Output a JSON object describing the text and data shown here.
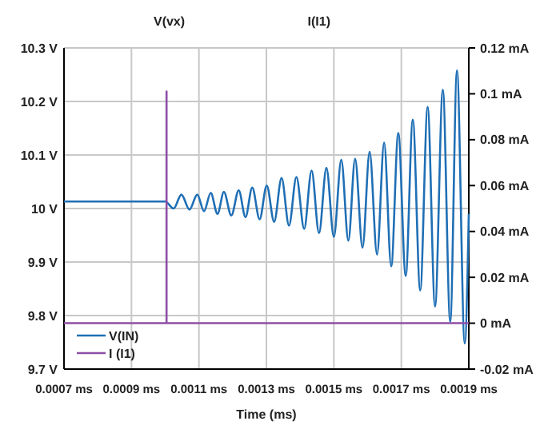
{
  "chart_data": {
    "type": "line",
    "xlabel": "Time (ms)",
    "annotations": [
      "V(vx)",
      "I(I1)"
    ],
    "xlim": [
      0.0007,
      0.0019
    ],
    "xticks": [
      {
        "value": 0.0007,
        "label": "0.0007 ms"
      },
      {
        "value": 0.0009,
        "label": "0.0009 ms"
      },
      {
        "value": 0.0011,
        "label": "0.0011 ms"
      },
      {
        "value": 0.0013,
        "label": "0.0013 ms"
      },
      {
        "value": 0.0015,
        "label": "0.0015 ms"
      },
      {
        "value": 0.0017,
        "label": "0.0017 ms"
      },
      {
        "value": 0.0019,
        "label": "0.0019 ms"
      }
    ],
    "ylim": [
      9.7,
      10.3
    ],
    "yticks": [
      {
        "value": 9.7,
        "label": "9.7 V"
      },
      {
        "value": 9.8,
        "label": "9.8 V"
      },
      {
        "value": 9.9,
        "label": "9.9 V"
      },
      {
        "value": 10,
        "label": "10 V"
      },
      {
        "value": 10.1,
        "label": "10.1 V"
      },
      {
        "value": 10.2,
        "label": "10.2 V"
      },
      {
        "value": 10.3,
        "label": "10.3 V"
      }
    ],
    "y2lim": [
      -0.02,
      0.12
    ],
    "y2ticks": [
      {
        "value": -0.02,
        "label": "-0.02 mA"
      },
      {
        "value": 0,
        "label": "0 mA"
      },
      {
        "value": 0.02,
        "label": "0.02 mA"
      },
      {
        "value": 0.04,
        "label": "0.04 mA"
      },
      {
        "value": 0.06,
        "label": "0.06 mA"
      },
      {
        "value": 0.08,
        "label": "0.08 mA"
      },
      {
        "value": 0.1,
        "label": "0.1 mA"
      },
      {
        "value": 0.12,
        "label": "0.12 mA"
      }
    ],
    "grid": true,
    "legend": "bottom left",
    "line_style": "solid",
    "series": [
      {
        "name": "V(IN)",
        "color": "#1f6fb5",
        "x": [
          0.0007,
          0.001,
          0.001025,
          0.001048,
          0.001072,
          0.001095,
          0.001115,
          0.001135,
          0.001155,
          0.001174,
          0.001196,
          0.001218,
          0.001238,
          0.001258,
          0.00128,
          0.001301,
          0.001323,
          0.001345,
          0.001367,
          0.001389,
          0.001412,
          0.001434,
          0.001456,
          0.001478,
          0.0015,
          0.001522,
          0.001543,
          0.001563,
          0.001585,
          0.001606,
          0.001628,
          0.001649,
          0.00167,
          0.001691,
          0.001713,
          0.001734,
          0.001756,
          0.001778,
          0.0018,
          0.001823,
          0.001845,
          0.001865,
          0.001888,
          0.0019
        ],
        "values": [
          10.013,
          10.013,
          10.0,
          10.026,
          9.998,
          10.026,
          9.995,
          10.029,
          9.99,
          10.031,
          9.987,
          10.034,
          9.984,
          10.039,
          9.98,
          10.043,
          9.975,
          10.057,
          9.968,
          10.059,
          9.962,
          10.071,
          9.954,
          10.076,
          9.947,
          10.091,
          9.94,
          10.093,
          9.927,
          10.106,
          9.914,
          10.123,
          9.892,
          10.141,
          9.874,
          10.166,
          9.847,
          10.19,
          9.817,
          10.222,
          9.788,
          10.258,
          9.748,
          9.99
        ]
      },
      {
        "name": "I (I1)",
        "color": "#8e4fa6",
        "axis": "y2",
        "x": [
          0.0007,
          0.001004,
          0.001004,
          0.001004,
          0.0019
        ],
        "values": [
          0,
          0,
          0.101,
          0,
          0
        ]
      }
    ]
  }
}
